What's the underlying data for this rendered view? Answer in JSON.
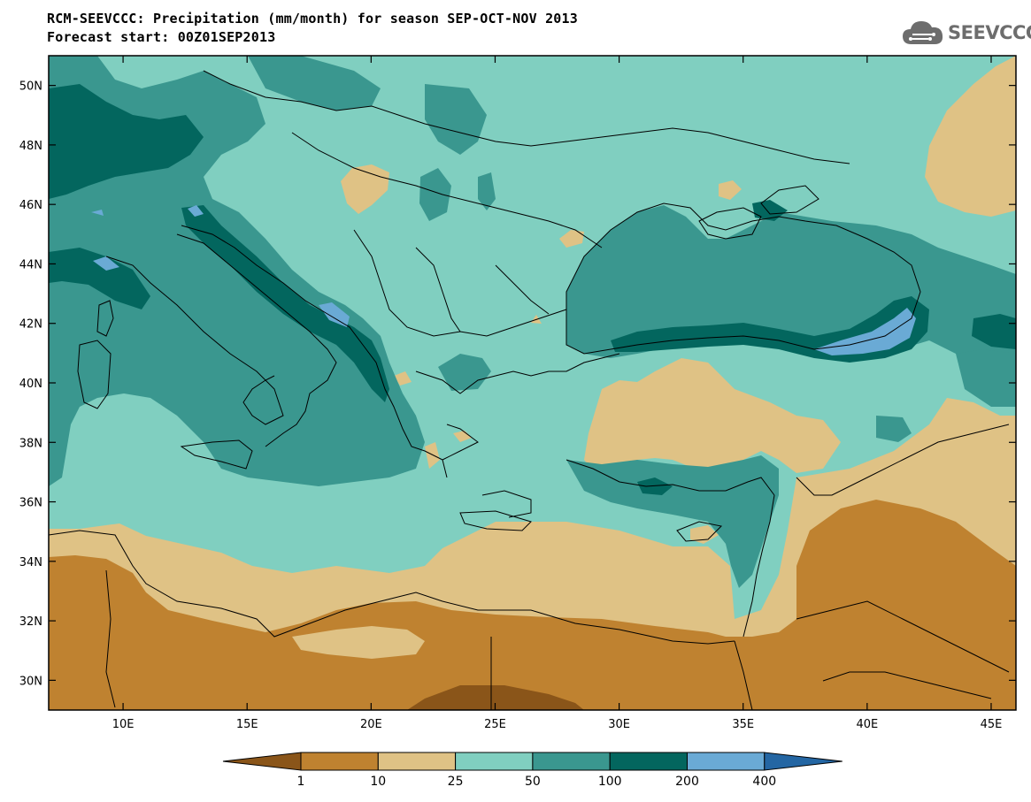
{
  "header": {
    "title_line1": "RCM-SEEVCCC: Precipitation (mm/month) for season SEP-OCT-NOV 2013",
    "title_line2": "Forecast start: 00Z01SEP2013"
  },
  "logo": {
    "text": "SEEVCCC",
    "icon": "cloud-icon"
  },
  "map": {
    "lon_range": [
      7,
      46
    ],
    "lat_range": [
      29,
      51
    ],
    "lon_ticks": [
      {
        "value": 10,
        "label": "10E"
      },
      {
        "value": 15,
        "label": "15E"
      },
      {
        "value": 20,
        "label": "20E"
      },
      {
        "value": 25,
        "label": "25E"
      },
      {
        "value": 30,
        "label": "30E"
      },
      {
        "value": 35,
        "label": "35E"
      },
      {
        "value": 40,
        "label": "40E"
      },
      {
        "value": 45,
        "label": "45E"
      }
    ],
    "lat_ticks": [
      {
        "value": 30,
        "label": "30N"
      },
      {
        "value": 32,
        "label": "32N"
      },
      {
        "value": 34,
        "label": "34N"
      },
      {
        "value": 36,
        "label": "36N"
      },
      {
        "value": 38,
        "label": "38N"
      },
      {
        "value": 40,
        "label": "40N"
      },
      {
        "value": 42,
        "label": "42N"
      },
      {
        "value": 44,
        "label": "44N"
      },
      {
        "value": 46,
        "label": "46N"
      },
      {
        "value": 48,
        "label": "48N"
      },
      {
        "value": 50,
        "label": "50N"
      }
    ]
  },
  "colorbar": {
    "levels": [
      "1",
      "10",
      "25",
      "50",
      "100",
      "200",
      "400"
    ],
    "colors": [
      "#8a5519",
      "#bf8230",
      "#dfc285",
      "#80cfc0",
      "#3a978f",
      "#03665e",
      "#6aaad5",
      "#2466a3"
    ]
  }
}
